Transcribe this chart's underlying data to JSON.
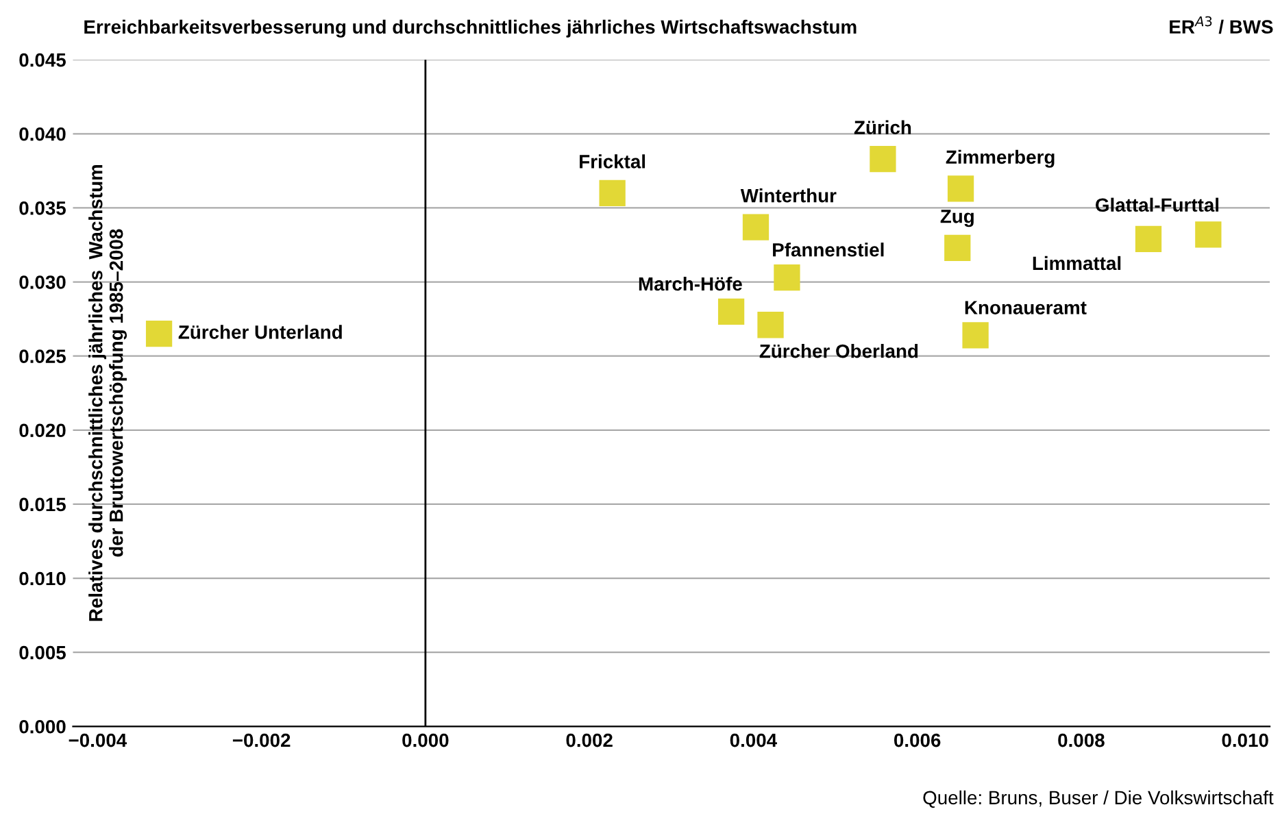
{
  "chart_data": {
    "type": "scatter",
    "title": "Erreichbarkeitsverbesserung und durchschnittliches jährliches Wirtschaftswachstum",
    "subtitle": "ER$^{A3}$ / BWS",
    "ylabel": "Relatives durchschnittliches jährliches  Wachstum\nder Bruttowertschöpfung 1985–2008",
    "x": [
      -0.00325,
      0.00228,
      0.00403,
      0.00558,
      0.00653,
      0.00649,
      0.00441,
      0.00373,
      0.00421,
      0.00671,
      0.00882,
      0.00955
    ],
    "series": [
      {
        "color": "#e2d836",
        "values": [
          0.0265,
          0.036,
          0.0337,
          0.0383,
          0.0363,
          0.0323,
          0.0303,
          0.028,
          0.0271,
          0.0264,
          0.0329,
          0.0332
        ]
      }
    ],
    "annotations": [
      {
        "text": "Zürcher Unterland",
        "x": -0.00325,
        "y": 0.0265
      },
      {
        "text": "Fricktal",
        "x": 0.00228,
        "y": 0.036
      },
      {
        "text": "Winterthur",
        "x": 0.00403,
        "y": 0.0337
      },
      {
        "text": "Zürich",
        "x": 0.00558,
        "y": 0.0383
      },
      {
        "text": "Zimmerberg",
        "x": 0.00653,
        "y": 0.0363
      },
      {
        "text": "Zug",
        "x": 0.00649,
        "y": 0.0323
      },
      {
        "text": "Pfannenstiel",
        "x": 0.00441,
        "y": 0.0303
      },
      {
        "text": "March-Höfe",
        "x": 0.00373,
        "y": 0.028
      },
      {
        "text": "Zürcher Oberland",
        "x": 0.00421,
        "y": 0.0271
      },
      {
        "text": "Knonaueramt",
        "x": 0.00671,
        "y": 0.0264
      },
      {
        "text": "Limmattal",
        "x": 0.00882,
        "y": 0.0329
      },
      {
        "text": "Glattal-Furttal",
        "x": 0.00955,
        "y": 0.0332
      },
      "Quelle: Bruns, Buser / Die Volkswirtschaft"
    ],
    "xlim": [
      -0.0043,
      0.0103
    ],
    "ylim": [
      0,
      0.045
    ],
    "xticks": [
      {
        "value": -0.004,
        "label": "−0.004"
      },
      {
        "value": -0.002,
        "label": "−0.002"
      },
      {
        "value": 0,
        "label": "0.000"
      },
      {
        "value": 0.002,
        "label": "0.002"
      },
      {
        "value": 0.004,
        "label": "0.004"
      },
      {
        "value": 0.006,
        "label": "0.006"
      },
      {
        "value": 0.008,
        "label": "0.008"
      },
      {
        "value": 0.01,
        "label": "0.010"
      }
    ],
    "yticks": [
      {
        "value": 0,
        "label": "0.000"
      },
      {
        "value": 0.005,
        "label": "0.005"
      },
      {
        "value": 0.01,
        "label": "0.010"
      },
      {
        "value": 0.015,
        "label": "0.015"
      },
      {
        "value": 0.02,
        "label": "0.020"
      },
      {
        "value": 0.025,
        "label": "0.025"
      },
      {
        "value": 0.03,
        "label": "0.030"
      },
      {
        "value": 0.035,
        "label": "0.035"
      },
      {
        "value": 0.04,
        "label": "0.040"
      },
      {
        "value": 0.045,
        "label": "0.045"
      }
    ],
    "ref_lines": [
      {
        "axis": "x",
        "value": 0,
        "color": "#000000"
      }
    ],
    "grid": "y",
    "marker": "square"
  }
}
